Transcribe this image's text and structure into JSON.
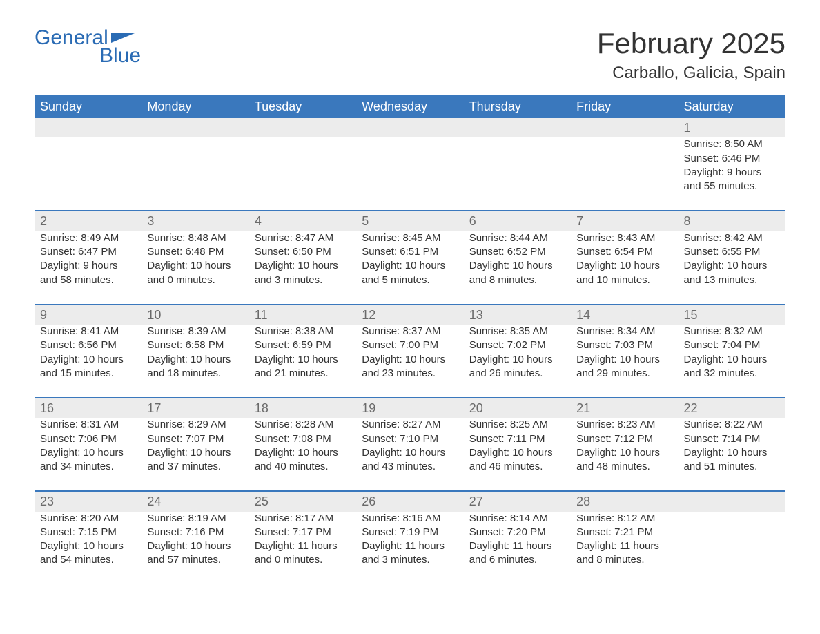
{
  "logo": {
    "word1": "General",
    "word2": "Blue"
  },
  "title": "February 2025",
  "location": "Carballo, Galicia, Spain",
  "colors": {
    "header_bg": "#3a78bd",
    "header_text": "#ffffff",
    "daynum_bg": "#ececec",
    "daynum_border": "#3a78bd",
    "body_text": "#333333",
    "logo_color": "#2a6bb4"
  },
  "day_headers": [
    "Sunday",
    "Monday",
    "Tuesday",
    "Wednesday",
    "Thursday",
    "Friday",
    "Saturday"
  ],
  "weeks": [
    [
      null,
      null,
      null,
      null,
      null,
      null,
      {
        "n": "1",
        "sr": "8:50 AM",
        "ss": "6:46 PM",
        "dl1": "9 hours",
        "dl2": "and 55 minutes."
      }
    ],
    [
      {
        "n": "2",
        "sr": "8:49 AM",
        "ss": "6:47 PM",
        "dl1": "9 hours",
        "dl2": "and 58 minutes."
      },
      {
        "n": "3",
        "sr": "8:48 AM",
        "ss": "6:48 PM",
        "dl1": "10 hours",
        "dl2": "and 0 minutes."
      },
      {
        "n": "4",
        "sr": "8:47 AM",
        "ss": "6:50 PM",
        "dl1": "10 hours",
        "dl2": "and 3 minutes."
      },
      {
        "n": "5",
        "sr": "8:45 AM",
        "ss": "6:51 PM",
        "dl1": "10 hours",
        "dl2": "and 5 minutes."
      },
      {
        "n": "6",
        "sr": "8:44 AM",
        "ss": "6:52 PM",
        "dl1": "10 hours",
        "dl2": "and 8 minutes."
      },
      {
        "n": "7",
        "sr": "8:43 AM",
        "ss": "6:54 PM",
        "dl1": "10 hours",
        "dl2": "and 10 minutes."
      },
      {
        "n": "8",
        "sr": "8:42 AM",
        "ss": "6:55 PM",
        "dl1": "10 hours",
        "dl2": "and 13 minutes."
      }
    ],
    [
      {
        "n": "9",
        "sr": "8:41 AM",
        "ss": "6:56 PM",
        "dl1": "10 hours",
        "dl2": "and 15 minutes."
      },
      {
        "n": "10",
        "sr": "8:39 AM",
        "ss": "6:58 PM",
        "dl1": "10 hours",
        "dl2": "and 18 minutes."
      },
      {
        "n": "11",
        "sr": "8:38 AM",
        "ss": "6:59 PM",
        "dl1": "10 hours",
        "dl2": "and 21 minutes."
      },
      {
        "n": "12",
        "sr": "8:37 AM",
        "ss": "7:00 PM",
        "dl1": "10 hours",
        "dl2": "and 23 minutes."
      },
      {
        "n": "13",
        "sr": "8:35 AM",
        "ss": "7:02 PM",
        "dl1": "10 hours",
        "dl2": "and 26 minutes."
      },
      {
        "n": "14",
        "sr": "8:34 AM",
        "ss": "7:03 PM",
        "dl1": "10 hours",
        "dl2": "and 29 minutes."
      },
      {
        "n": "15",
        "sr": "8:32 AM",
        "ss": "7:04 PM",
        "dl1": "10 hours",
        "dl2": "and 32 minutes."
      }
    ],
    [
      {
        "n": "16",
        "sr": "8:31 AM",
        "ss": "7:06 PM",
        "dl1": "10 hours",
        "dl2": "and 34 minutes."
      },
      {
        "n": "17",
        "sr": "8:29 AM",
        "ss": "7:07 PM",
        "dl1": "10 hours",
        "dl2": "and 37 minutes."
      },
      {
        "n": "18",
        "sr": "8:28 AM",
        "ss": "7:08 PM",
        "dl1": "10 hours",
        "dl2": "and 40 minutes."
      },
      {
        "n": "19",
        "sr": "8:27 AM",
        "ss": "7:10 PM",
        "dl1": "10 hours",
        "dl2": "and 43 minutes."
      },
      {
        "n": "20",
        "sr": "8:25 AM",
        "ss": "7:11 PM",
        "dl1": "10 hours",
        "dl2": "and 46 minutes."
      },
      {
        "n": "21",
        "sr": "8:23 AM",
        "ss": "7:12 PM",
        "dl1": "10 hours",
        "dl2": "and 48 minutes."
      },
      {
        "n": "22",
        "sr": "8:22 AM",
        "ss": "7:14 PM",
        "dl1": "10 hours",
        "dl2": "and 51 minutes."
      }
    ],
    [
      {
        "n": "23",
        "sr": "8:20 AM",
        "ss": "7:15 PM",
        "dl1": "10 hours",
        "dl2": "and 54 minutes."
      },
      {
        "n": "24",
        "sr": "8:19 AM",
        "ss": "7:16 PM",
        "dl1": "10 hours",
        "dl2": "and 57 minutes."
      },
      {
        "n": "25",
        "sr": "8:17 AM",
        "ss": "7:17 PM",
        "dl1": "11 hours",
        "dl2": "and 0 minutes."
      },
      {
        "n": "26",
        "sr": "8:16 AM",
        "ss": "7:19 PM",
        "dl1": "11 hours",
        "dl2": "and 3 minutes."
      },
      {
        "n": "27",
        "sr": "8:14 AM",
        "ss": "7:20 PM",
        "dl1": "11 hours",
        "dl2": "and 6 minutes."
      },
      {
        "n": "28",
        "sr": "8:12 AM",
        "ss": "7:21 PM",
        "dl1": "11 hours",
        "dl2": "and 8 minutes."
      },
      null
    ]
  ],
  "labels": {
    "sunrise": "Sunrise: ",
    "sunset": "Sunset: ",
    "daylight": "Daylight: "
  }
}
